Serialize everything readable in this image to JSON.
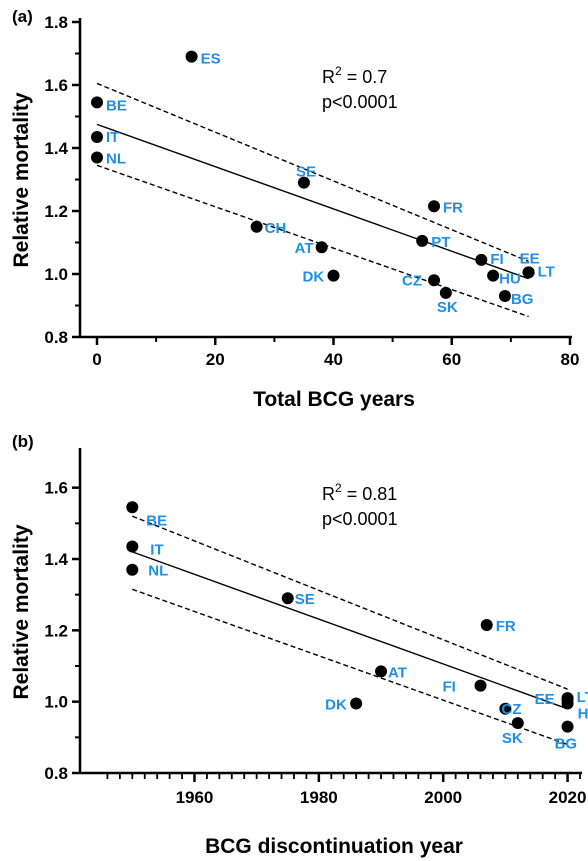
{
  "colors": {
    "label": "#1e90e8",
    "marker": "#000000",
    "line": "#000000"
  },
  "chart_data": [
    {
      "type": "scatter",
      "panel": "(a)",
      "xlabel": "Total BCG years",
      "ylabel": "Relative mortality",
      "xlim": [
        0,
        80
      ],
      "ylim": [
        0.8,
        1.8
      ],
      "xticks": [
        "0",
        "20",
        "40",
        "60",
        "80"
      ],
      "yticks": [
        "0.8",
        "1.0",
        "1.2",
        "1.4",
        "1.6",
        "1.8"
      ],
      "stat_r2_prefix": "R",
      "stat_r2_sup": "2",
      "stat_r2_suffix": " = 0.7",
      "stat_p": "p<0.0001",
      "fit": {
        "x": [
          0,
          73
        ],
        "y": [
          1.475,
          0.985
        ]
      },
      "ci_upper": {
        "x": [
          0,
          73
        ],
        "y": [
          1.605,
          1.04
        ]
      },
      "ci_lower": {
        "x": [
          0,
          73
        ],
        "y": [
          1.345,
          0.865
        ]
      },
      "points": [
        {
          "label": "ES",
          "x": 16,
          "y": 1.69
        },
        {
          "label": "BE",
          "x": 0,
          "y": 1.545
        },
        {
          "label": "IT",
          "x": 0,
          "y": 1.435
        },
        {
          "label": "NL",
          "x": 0,
          "y": 1.37
        },
        {
          "label": "SE",
          "x": 35,
          "y": 1.29
        },
        {
          "label": "CH",
          "x": 27,
          "y": 1.15
        },
        {
          "label": "FR",
          "x": 57,
          "y": 1.215
        },
        {
          "label": "PT",
          "x": 55,
          "y": 1.105
        },
        {
          "label": "AT",
          "x": 38,
          "y": 1.085
        },
        {
          "label": "DK",
          "x": 40,
          "y": 0.995
        },
        {
          "label": "FI",
          "x": 65,
          "y": 1.045
        },
        {
          "label": "EE",
          "x": 73,
          "y": 1.005
        },
        {
          "label": "HU",
          "x": 67,
          "y": 0.995
        },
        {
          "label": "LT",
          "x": 73,
          "y": 1.005
        },
        {
          "label": "CZ",
          "x": 57,
          "y": 0.98
        },
        {
          "label": "SK",
          "x": 59,
          "y": 0.94
        },
        {
          "label": "BG",
          "x": 69,
          "y": 0.93
        }
      ]
    },
    {
      "type": "scatter",
      "panel": "(b)",
      "xlabel": "BCG discontinuation year",
      "ylabel": "Relative mortality",
      "xlim": [
        1944,
        2022
      ],
      "ylim": [
        0.8,
        1.7
      ],
      "xticks": [
        "1960",
        "1980",
        "2000",
        "2020"
      ],
      "yticks": [
        "0.8",
        "1.0",
        "1.2",
        "1.4",
        "1.6"
      ],
      "stat_r2_prefix": "R",
      "stat_r2_sup": "2",
      "stat_r2_suffix": " = 0.81",
      "stat_p": "p<0.0001",
      "fit": {
        "x": [
          1950,
          2020
        ],
        "y": [
          1.42,
          0.98
        ]
      },
      "ci_upper": {
        "x": [
          1950,
          2020
        ],
        "y": [
          1.52,
          1.035
        ]
      },
      "ci_lower": {
        "x": [
          1950,
          2020
        ],
        "y": [
          1.315,
          0.88
        ]
      },
      "points": [
        {
          "label": "BE",
          "x": 1950,
          "y": 1.545
        },
        {
          "label": "IT",
          "x": 1950,
          "y": 1.435
        },
        {
          "label": "NL",
          "x": 1950,
          "y": 1.37
        },
        {
          "label": "SE",
          "x": 1975,
          "y": 1.29
        },
        {
          "label": "FR",
          "x": 2007,
          "y": 1.215
        },
        {
          "label": "AT",
          "x": 1990,
          "y": 1.085
        },
        {
          "label": "FI",
          "x": 2006,
          "y": 1.045
        },
        {
          "label": "DK",
          "x": 1986,
          "y": 0.995
        },
        {
          "label": "EE",
          "x": 2020,
          "y": 1.005
        },
        {
          "label": "LT",
          "x": 2020,
          "y": 1.01
        },
        {
          "label": "HU",
          "x": 2020,
          "y": 0.995
        },
        {
          "label": "CZ",
          "x": 2010,
          "y": 0.98
        },
        {
          "label": "SK",
          "x": 2012,
          "y": 0.94
        },
        {
          "label": "BG",
          "x": 2020,
          "y": 0.93
        }
      ]
    }
  ]
}
